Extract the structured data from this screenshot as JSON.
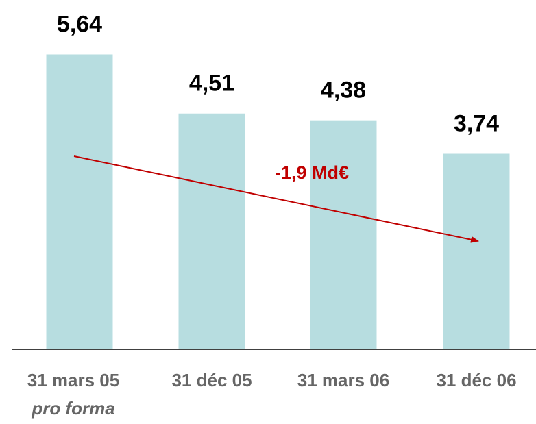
{
  "chart_data": {
    "type": "bar",
    "categories": [
      "31 mars 05",
      "31 déc 05",
      "31 mars 06",
      "31 déc 06"
    ],
    "values": [
      5.64,
      4.51,
      4.38,
      3.74
    ],
    "value_labels": [
      "5,64",
      "4,51",
      "4,38",
      "3,74"
    ],
    "color": "#b7dde0",
    "ylim": [
      0,
      6
    ],
    "category_note": "pro forma",
    "annotation": {
      "text": "-1,9 Md€",
      "color": "#c00000"
    }
  }
}
